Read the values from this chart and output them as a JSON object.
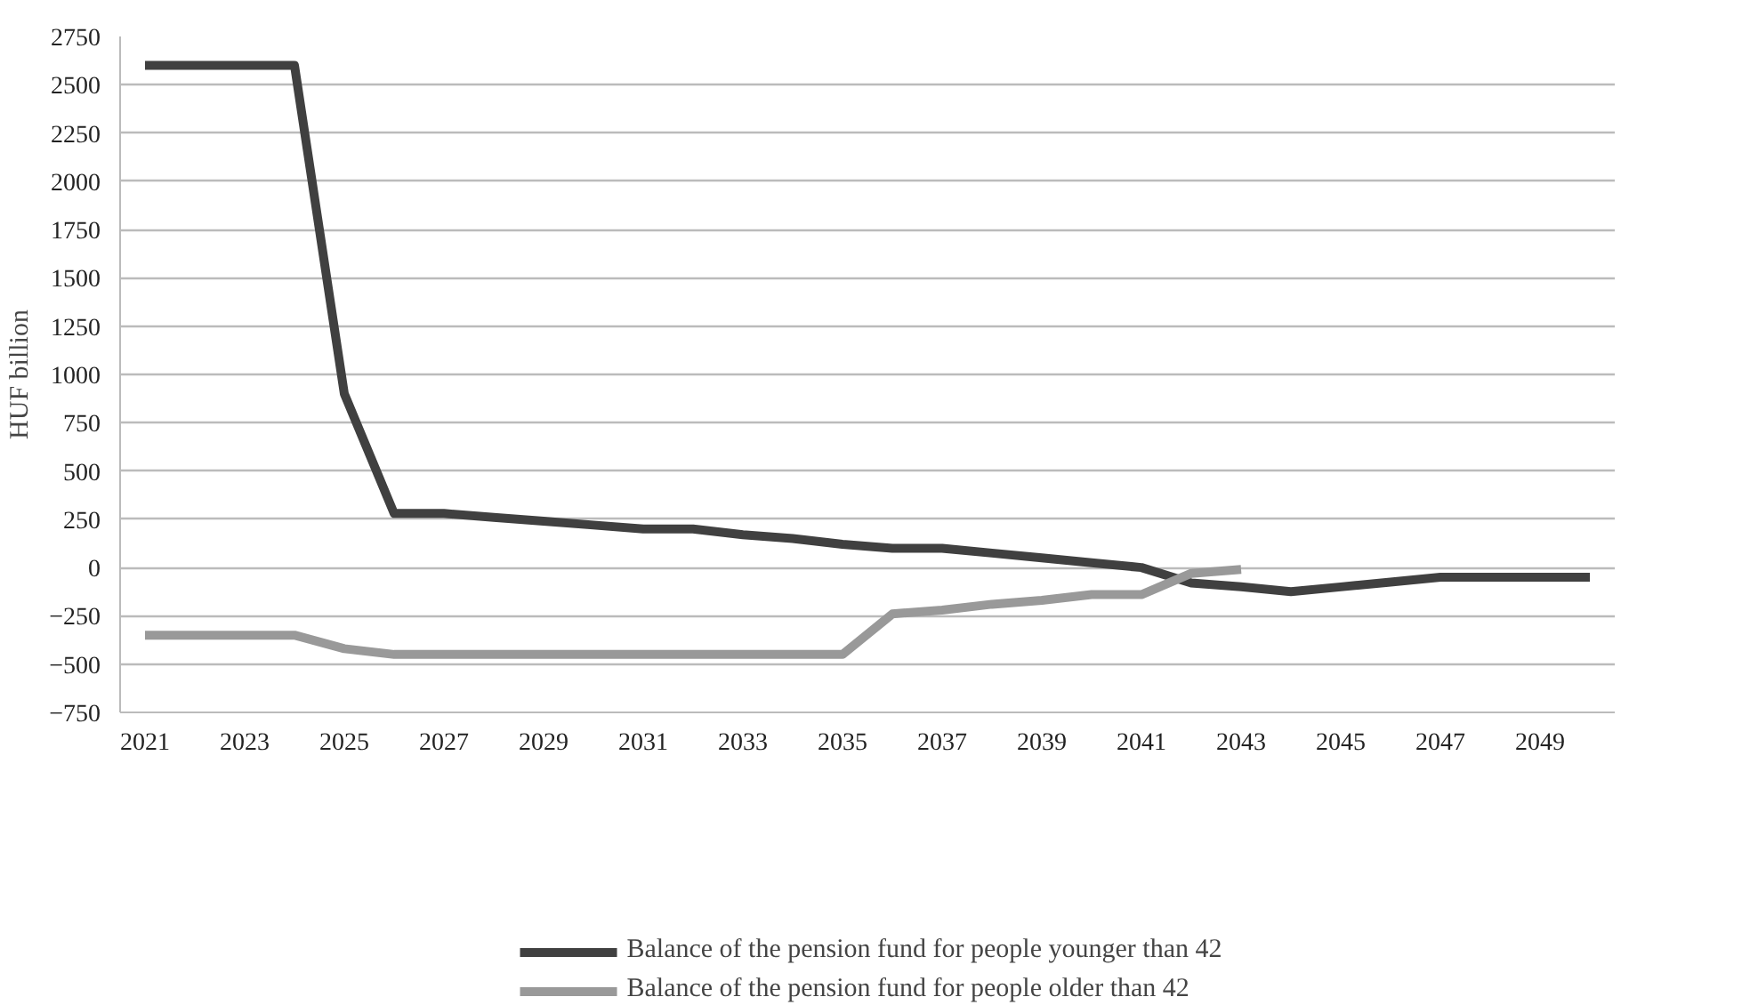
{
  "chart_data": {
    "type": "line",
    "ylabel": "HUF billion",
    "x": [
      2021,
      2022,
      2023,
      2024,
      2025,
      2026,
      2027,
      2028,
      2029,
      2030,
      2031,
      2032,
      2033,
      2034,
      2035,
      2036,
      2037,
      2038,
      2039,
      2040,
      2041,
      2042,
      2043,
      2044,
      2045,
      2046,
      2047,
      2048,
      2049,
      2050
    ],
    "xlim": [
      2020.5,
      2050.5
    ],
    "xticks": [
      2021,
      2023,
      2025,
      2027,
      2029,
      2031,
      2033,
      2035,
      2037,
      2039,
      2041,
      2043,
      2045,
      2047,
      2049
    ],
    "ylim": [
      -750,
      2750
    ],
    "yticks": [
      -750,
      -500,
      -250,
      0,
      250,
      500,
      750,
      1000,
      1250,
      1500,
      1750,
      2000,
      2250,
      2500,
      2750
    ],
    "grid": "y",
    "legend": "bottom",
    "line_style": "solid",
    "marker": "none",
    "series": [
      {
        "name": "Balance of the pension fund for people younger than 42",
        "color": "#404040",
        "values": [
          2600,
          2600,
          2600,
          2600,
          900,
          280,
          280,
          260,
          240,
          220,
          200,
          200,
          170,
          150,
          120,
          100,
          100,
          75,
          50,
          25,
          0,
          -80,
          -100,
          -125,
          -100,
          -75,
          -50,
          -50,
          -50,
          -50
        ]
      },
      {
        "name": "Balance of the pension fund for people older than 42",
        "color": "#999999",
        "values": [
          -350,
          -350,
          -350,
          -350,
          -420,
          -450,
          -450,
          -450,
          -450,
          -450,
          -450,
          -450,
          -450,
          -450,
          -450,
          -240,
          -220,
          -190,
          -170,
          -140,
          -140,
          -30,
          -10,
          null,
          null,
          null,
          null,
          null,
          null,
          null
        ]
      }
    ]
  }
}
